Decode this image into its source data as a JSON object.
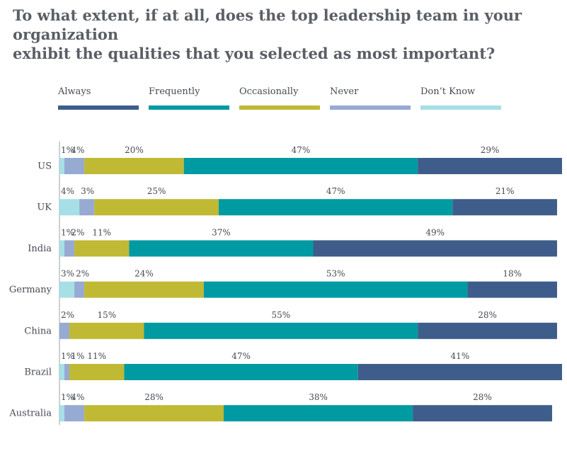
{
  "title_lines": [
    "To what extent, if at all, does the top leadership team in your organization",
    "exhibit the qualities that you selected as most important?"
  ],
  "chart_data": {
    "type": "bar",
    "orientation": "horizontal",
    "stacked": true,
    "title": "To what extent, if at all, does the top leadership team in your organization exhibit the qualities that you selected as most important?",
    "categories": [
      "US",
      "UK",
      "India",
      "Germany",
      "China",
      "Brazil",
      "Australia"
    ],
    "series": [
      {
        "name": "Don't Know",
        "color": "#a7dfe6",
        "values": [
          1,
          4,
          1,
          3,
          0,
          1,
          1
        ]
      },
      {
        "name": "Never",
        "color": "#96aad2",
        "values": [
          4,
          3,
          2,
          2,
          2,
          1,
          4
        ]
      },
      {
        "name": "Occasionally",
        "color": "#c0b934",
        "values": [
          20,
          25,
          11,
          24,
          15,
          11,
          28
        ]
      },
      {
        "name": "Frequently",
        "color": "#009aa3",
        "values": [
          47,
          47,
          37,
          53,
          55,
          47,
          38
        ]
      },
      {
        "name": "Always",
        "color": "#3e5d8a",
        "values": [
          29,
          21,
          49,
          18,
          28,
          41,
          28
        ]
      }
    ],
    "value_labels": [
      [
        "1%",
        "4%",
        "20%",
        "47%",
        "29%"
      ],
      [
        "4%",
        "3%",
        "25%",
        "47%",
        "21%"
      ],
      [
        "1%",
        "2%",
        "11%",
        "37%",
        "49%"
      ],
      [
        "3%",
        "2%",
        "24%",
        "53%",
        "18%"
      ],
      [
        "",
        "2%",
        "15%",
        "55%",
        "28%"
      ],
      [
        "1%",
        "1%",
        "11%",
        "47%",
        "41%"
      ],
      [
        "1%",
        "4%",
        "28%",
        "38%",
        "28%"
      ]
    ],
    "legend_order": [
      "Always",
      "Frequently",
      "Occasionally",
      "Never",
      "Don't Know"
    ],
    "legend_labels": [
      "Always",
      "Frequently",
      "Occasionally",
      "Never",
      "Don’t Know"
    ],
    "legend_position": "top",
    "xlim": [
      0,
      101
    ],
    "grid": false
  }
}
